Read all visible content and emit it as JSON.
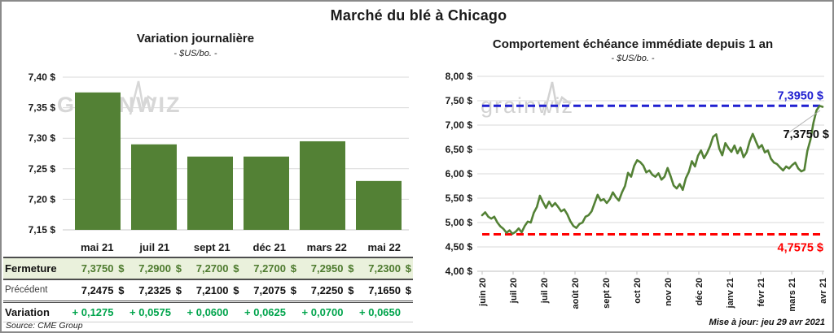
{
  "page": {
    "title": "Marché du blé à Chicago",
    "source_note": "Source: CME Group",
    "updated_note": "Mise à jour: jeu 29 avr 2021",
    "watermark_left": "GRAINWIZ",
    "watermark_right": "grainwiz"
  },
  "colors": {
    "bar_green": "#538135",
    "line_green": "#538135",
    "close_green": "#4e7b2f",
    "variation_green": "#00a44c",
    "high_blue": "#1f1fd0",
    "low_red": "#ff0000",
    "grid_gray": "#d9d9d9",
    "axis_gray": "#bfbfbf",
    "label_black": "#1a1a1a",
    "fermeture_row_bg": "#eaf1dc",
    "watermark_gray": "#d7d7d7"
  },
  "table": {
    "columns": [
      "mai 21",
      "juil 21",
      "sept 21",
      "déc 21",
      "mars 22",
      "mai 22"
    ],
    "rows": [
      {
        "key": "fermeture",
        "label": "Fermeture",
        "currency": "$",
        "values": [
          "7,3750",
          "7,2900",
          "7,2700",
          "7,2700",
          "7,2950",
          "7,2300"
        ]
      },
      {
        "key": "precedent",
        "label": "Précédent",
        "currency": "$",
        "values": [
          "7,2475",
          "7,2325",
          "7,2100",
          "7,2075",
          "7,2250",
          "7,1650"
        ]
      },
      {
        "key": "variation",
        "label": "Variation",
        "currency": "",
        "values": [
          "+ 0,1275",
          "+ 0,0575",
          "+ 0,0600",
          "+ 0,0625",
          "+ 0,0700",
          "+ 0,0650"
        ]
      }
    ]
  },
  "chart_data": [
    {
      "type": "bar",
      "title": "Variation journalière",
      "subtitle": "- $US/bo. -",
      "categories": [
        "mai 21",
        "juil 21",
        "sept 21",
        "déc 21",
        "mars 22",
        "mai 22"
      ],
      "values": [
        7.375,
        7.29,
        7.27,
        7.27,
        7.295,
        7.23
      ],
      "ylim": [
        7.15,
        7.4
      ],
      "y_ticks": [
        {
          "v": 7.4,
          "label": "7,40 $"
        },
        {
          "v": 7.35,
          "label": "7,35 $"
        },
        {
          "v": 7.3,
          "label": "7,30 $"
        },
        {
          "v": 7.25,
          "label": "7,25 $"
        },
        {
          "v": 7.2,
          "label": "7,20 $"
        },
        {
          "v": 7.15,
          "label": "7,15 $"
        }
      ],
      "grid": true,
      "legend": "none"
    },
    {
      "type": "line",
      "title": "Comportement échéance immédiate depuis 1 an",
      "subtitle": "- $US/bo. -",
      "x_tick_labels": [
        "juin 20",
        "juil 20",
        "juil 20",
        "août 20",
        "sept 20",
        "oct 20",
        "nov 20",
        "déc 20",
        "janv 21",
        "févr 21",
        "mars 21",
        "avr 21"
      ],
      "ylim": [
        4.0,
        8.0
      ],
      "y_ticks": [
        {
          "v": 8.0,
          "label": "8,00 $"
        },
        {
          "v": 7.5,
          "label": "7,50 $"
        },
        {
          "v": 7.0,
          "label": "7,00 $"
        },
        {
          "v": 6.5,
          "label": "6,50 $"
        },
        {
          "v": 6.0,
          "label": "6,00 $"
        },
        {
          "v": 5.5,
          "label": "5,50 $"
        },
        {
          "v": 5.0,
          "label": "5,00 $"
        },
        {
          "v": 4.5,
          "label": "4,50 $"
        },
        {
          "v": 4.0,
          "label": "4,00 $"
        }
      ],
      "grid": true,
      "legend": "none",
      "values": [
        5.15,
        5.21,
        5.12,
        5.08,
        5.12,
        5.0,
        4.92,
        4.87,
        4.79,
        4.84,
        4.77,
        4.81,
        4.88,
        4.8,
        4.93,
        5.02,
        5.0,
        5.2,
        5.32,
        5.55,
        5.42,
        5.3,
        5.43,
        5.33,
        5.4,
        5.32,
        5.23,
        5.27,
        5.17,
        5.03,
        4.93,
        4.89,
        4.97,
        5.0,
        5.12,
        5.15,
        5.23,
        5.4,
        5.57,
        5.45,
        5.48,
        5.4,
        5.48,
        5.62,
        5.52,
        5.45,
        5.62,
        5.75,
        6.02,
        5.94,
        6.16,
        6.28,
        6.24,
        6.17,
        6.03,
        6.07,
        5.98,
        5.94,
        6.01,
        5.88,
        5.94,
        6.12,
        5.95,
        5.76,
        5.7,
        5.79,
        5.67,
        5.91,
        6.04,
        6.26,
        6.15,
        6.37,
        6.48,
        6.32,
        6.43,
        6.57,
        6.76,
        6.81,
        6.52,
        6.38,
        6.63,
        6.53,
        6.45,
        6.58,
        6.42,
        6.54,
        6.34,
        6.44,
        6.66,
        6.82,
        6.67,
        6.53,
        6.59,
        6.44,
        6.48,
        6.31,
        6.23,
        6.2,
        6.13,
        6.07,
        6.15,
        6.11,
        6.18,
        6.23,
        6.11,
        6.05,
        6.08,
        6.47,
        6.7,
        7.05,
        7.3,
        7.395,
        7.375
      ],
      "high_line": {
        "value": 7.395,
        "label": "7,3950 $"
      },
      "low_line": {
        "value": 4.7575,
        "label": "4,7575 $"
      },
      "last_point_label": {
        "value": 7.375,
        "label": "7,3750 $"
      }
    }
  ]
}
